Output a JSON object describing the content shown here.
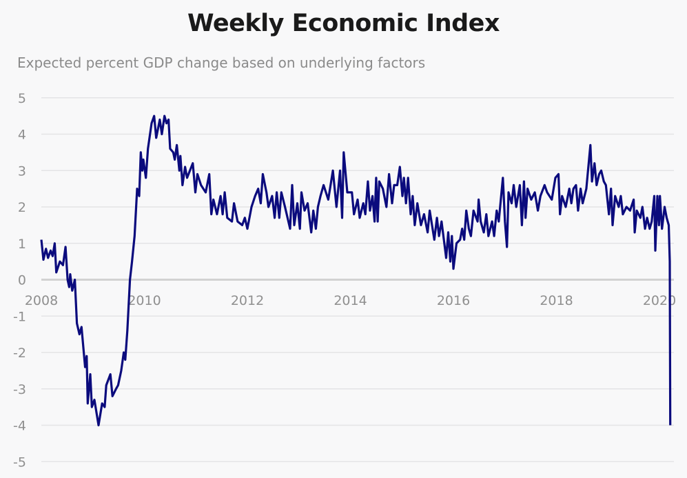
{
  "chart_data": {
    "type": "line",
    "title": "Weekly Economic Index",
    "subtitle": "Expected percent GDP change based on underlying factors",
    "xlabel": "",
    "ylabel": "",
    "xlim": [
      2008,
      2020.25
    ],
    "ylim": [
      -5,
      5
    ],
    "grid": true,
    "legend": "none",
    "x_ticks": [
      2008,
      2010,
      2012,
      2014,
      2016,
      2018,
      2020
    ],
    "x_tick_labels": [
      "2008",
      "2010",
      "2012",
      "2014",
      "2016",
      "2018",
      "2020"
    ],
    "y_ticks": [
      5,
      4,
      3,
      2,
      1,
      0,
      -1,
      -2,
      -3,
      -4,
      -5
    ],
    "y_tick_labels": [
      "5",
      "4",
      "3",
      "2",
      "1",
      "0",
      "-1",
      "-2",
      "-3",
      "-4",
      "-5"
    ],
    "line_color": "#0b0b7d",
    "series": [
      {
        "name": "Weekly Economic Index",
        "x": [
          2008.0,
          2008.04,
          2008.09,
          2008.13,
          2008.18,
          2008.22,
          2008.26,
          2008.29,
          2008.36,
          2008.42,
          2008.47,
          2008.51,
          2008.54,
          2008.56,
          2008.6,
          2008.65,
          2008.69,
          2008.74,
          2008.78,
          2008.85,
          2008.88,
          2008.9,
          2008.95,
          2008.98,
          2009.03,
          2009.11,
          2009.18,
          2009.23,
          2009.26,
          2009.34,
          2009.38,
          2009.45,
          2009.49,
          2009.55,
          2009.6,
          2009.63,
          2009.67,
          2009.72,
          2009.76,
          2009.81,
          2009.86,
          2009.9,
          2009.93,
          2009.96,
          2009.98,
          2010.03,
          2010.07,
          2010.14,
          2010.19,
          2010.23,
          2010.3,
          2010.34,
          2010.39,
          2010.43,
          2010.47,
          2010.5,
          2010.56,
          2010.59,
          2010.63,
          2010.68,
          2010.7,
          2010.74,
          2010.79,
          2010.83,
          2010.94,
          2010.99,
          2011.03,
          2011.1,
          2011.19,
          2011.26,
          2011.3,
          2011.34,
          2011.41,
          2011.48,
          2011.52,
          2011.56,
          2011.61,
          2011.7,
          2011.74,
          2011.81,
          2011.9,
          2011.95,
          2012.0,
          2012.08,
          2012.15,
          2012.21,
          2012.26,
          2012.3,
          2012.37,
          2012.41,
          2012.48,
          2012.53,
          2012.57,
          2012.62,
          2012.66,
          2012.73,
          2012.83,
          2012.87,
          2012.91,
          2012.97,
          2013.02,
          2013.05,
          2013.11,
          2013.17,
          2013.24,
          2013.28,
          2013.33,
          2013.37,
          2013.42,
          2013.48,
          2013.57,
          2013.66,
          2013.73,
          2013.8,
          2013.84,
          2013.87,
          2013.94,
          2014.03,
          2014.07,
          2014.14,
          2014.18,
          2014.25,
          2014.29,
          2014.34,
          2014.38,
          2014.43,
          2014.47,
          2014.5,
          2014.53,
          2014.56,
          2014.63,
          2014.7,
          2014.75,
          2014.81,
          2014.85,
          2014.91,
          2014.96,
          2015.01,
          2015.04,
          2015.08,
          2015.12,
          2015.17,
          2015.21,
          2015.25,
          2015.3,
          2015.37,
          2015.43,
          2015.5,
          2015.54,
          2015.63,
          2015.68,
          2015.72,
          2015.77,
          2015.86,
          2015.9,
          2015.94,
          2015.97,
          2016.0,
          2016.06,
          2016.13,
          2016.17,
          2016.21,
          2016.25,
          2016.3,
          2016.34,
          2016.39,
          2016.47,
          2016.49,
          2016.53,
          2016.59,
          2016.64,
          2016.68,
          2016.75,
          2016.79,
          2016.84,
          2016.88,
          2016.96,
          2017.0,
          2017.04,
          2017.07,
          2017.13,
          2017.17,
          2017.22,
          2017.29,
          2017.33,
          2017.37,
          2017.4,
          2017.44,
          2017.51,
          2017.58,
          2017.64,
          2017.69,
          2017.77,
          2017.82,
          2017.91,
          2017.98,
          2018.04,
          2018.07,
          2018.11,
          2018.18,
          2018.25,
          2018.29,
          2018.33,
          2018.38,
          2018.42,
          2018.47,
          2018.51,
          2018.58,
          2018.66,
          2018.69,
          2018.74,
          2018.78,
          2018.83,
          2018.87,
          2018.92,
          2018.96,
          2019.02,
          2019.06,
          2019.09,
          2019.14,
          2019.21,
          2019.25,
          2019.29,
          2019.36,
          2019.43,
          2019.5,
          2019.52,
          2019.56,
          2019.63,
          2019.67,
          2019.72,
          2019.76,
          2019.81,
          2019.85,
          2019.9,
          2019.92,
          2019.96,
          2019.99,
          2020.01,
          2020.05,
          2020.1,
          2020.14,
          2020.18,
          2020.2,
          2020.21
        ],
        "y": [
          1.1,
          0.55,
          0.85,
          0.6,
          0.8,
          0.65,
          1.0,
          0.2,
          0.5,
          0.4,
          0.9,
          0.0,
          -0.2,
          0.15,
          -0.3,
          0.0,
          -1.2,
          -1.5,
          -1.3,
          -2.4,
          -2.1,
          -3.4,
          -2.6,
          -3.5,
          -3.3,
          -4.0,
          -3.4,
          -3.5,
          -2.9,
          -2.6,
          -3.2,
          -3.0,
          -2.9,
          -2.5,
          -2.0,
          -2.2,
          -1.4,
          0.0,
          0.5,
          1.2,
          2.5,
          2.3,
          3.5,
          3.0,
          3.3,
          2.8,
          3.6,
          4.3,
          4.5,
          3.9,
          4.4,
          4.0,
          4.5,
          4.3,
          4.4,
          3.6,
          3.5,
          3.3,
          3.7,
          3.0,
          3.4,
          2.6,
          3.1,
          2.8,
          3.2,
          2.4,
          2.9,
          2.6,
          2.4,
          2.9,
          1.8,
          2.2,
          1.8,
          2.3,
          1.8,
          2.4,
          1.7,
          1.6,
          2.1,
          1.6,
          1.5,
          1.7,
          1.4,
          2.0,
          2.3,
          2.5,
          2.1,
          2.9,
          2.4,
          2.0,
          2.3,
          1.7,
          2.4,
          1.7,
          2.4,
          2.0,
          1.4,
          2.6,
          1.5,
          2.1,
          1.4,
          2.4,
          1.9,
          2.1,
          1.3,
          1.9,
          1.4,
          2.0,
          2.3,
          2.6,
          2.2,
          3.0,
          2.0,
          3.0,
          1.7,
          3.5,
          2.4,
          2.4,
          1.8,
          2.2,
          1.7,
          2.1,
          1.8,
          2.7,
          1.9,
          2.3,
          1.6,
          2.8,
          1.6,
          2.7,
          2.5,
          2.0,
          2.9,
          2.1,
          2.6,
          2.6,
          3.1,
          2.3,
          2.8,
          2.1,
          2.8,
          1.8,
          2.3,
          1.5,
          2.1,
          1.5,
          1.8,
          1.3,
          1.9,
          1.1,
          1.7,
          1.2,
          1.6,
          0.6,
          1.3,
          0.5,
          1.2,
          0.3,
          1.0,
          1.1,
          1.4,
          1.1,
          1.9,
          1.4,
          1.2,
          1.9,
          1.6,
          2.2,
          1.6,
          1.3,
          1.8,
          1.2,
          1.6,
          1.2,
          1.9,
          1.6,
          2.8,
          1.6,
          0.9,
          2.4,
          2.1,
          2.6,
          2.0,
          2.6,
          1.5,
          2.7,
          1.7,
          2.5,
          2.2,
          2.4,
          1.9,
          2.3,
          2.6,
          2.4,
          2.2,
          2.8,
          2.9,
          1.8,
          2.3,
          2.0,
          2.5,
          2.1,
          2.5,
          2.6,
          1.9,
          2.5,
          2.1,
          2.5,
          3.7,
          2.7,
          3.2,
          2.6,
          2.9,
          3.0,
          2.7,
          2.6,
          1.8,
          2.5,
          1.5,
          2.3,
          2.0,
          2.3,
          1.8,
          2.0,
          1.9,
          2.2,
          1.3,
          1.9,
          1.7,
          2.0,
          1.4,
          1.7,
          1.4,
          1.6,
          2.3,
          0.8,
          2.3,
          1.5,
          2.3,
          1.4,
          2.0,
          1.7,
          1.5,
          0.5,
          -4.0
        ]
      }
    ]
  }
}
